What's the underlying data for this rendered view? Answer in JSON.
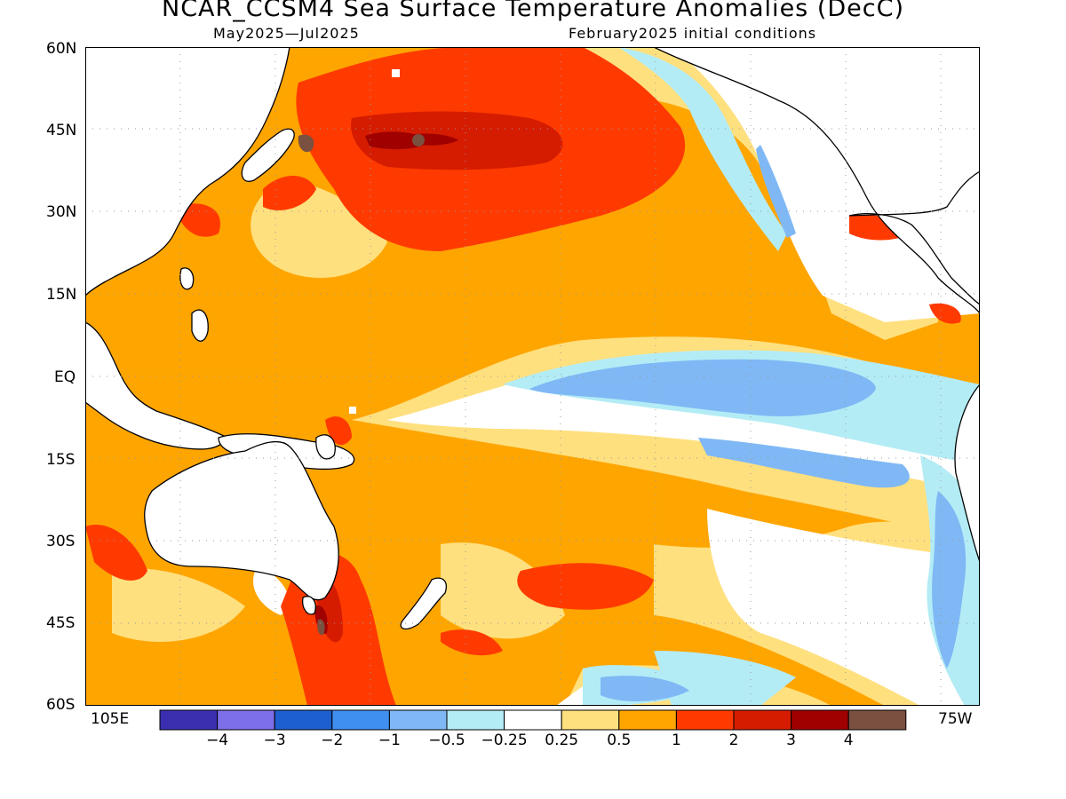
{
  "header": {
    "title": "NCAR_CCSM4 Sea Surface Temperature Anomalies (DecC)",
    "period": "May2025—Jul2025",
    "init": "February2025 initial conditions"
  },
  "axes": {
    "lat_labels": [
      "60N",
      "45N",
      "30N",
      "15N",
      "EQ",
      "15S",
      "30S",
      "45S",
      "60S"
    ],
    "lon_left": "105E",
    "lon_right": "75W"
  },
  "colorbar": {
    "colors": [
      "#3b2fb0",
      "#7d6fe8",
      "#1e5fd0",
      "#3f8ff0",
      "#7fb8f5",
      "#b3ecf5",
      "#ffffff",
      "#ffe07f",
      "#ffa500",
      "#ff3a00",
      "#d51c00",
      "#a00000",
      "#7a5040"
    ],
    "labels": [
      "−4",
      "−3",
      "−2",
      "−1",
      "−0.5",
      "−0.25",
      "0.25",
      "0.5",
      "1",
      "2",
      "3",
      "4"
    ]
  }
}
